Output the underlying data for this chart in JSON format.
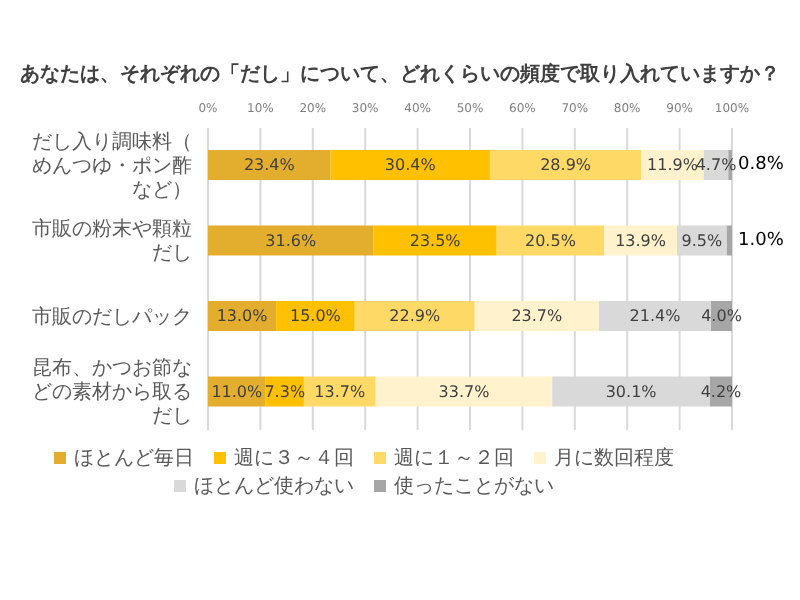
{
  "chart_data": {
    "type": "bar",
    "orientation": "horizontal",
    "stacked": true,
    "title": "あなたは、それぞれの「だし」について、どれくらいの頻度で取り入れていますか？",
    "categories": [
      "だし入り調味料（めんつゆ・ポン酢など）",
      "市販の粉末や顆粒だし",
      "市販のだしパック",
      "昆布、かつお節などの素材から取るだし"
    ],
    "series": [
      {
        "name": "ほとんど毎日",
        "color": "#e3ae2e",
        "values": [
          23.4,
          31.6,
          13.0,
          11.0
        ],
        "value_labels": [
          "23.4%",
          "31.6%",
          "13.0%",
          "11.0%"
        ]
      },
      {
        "name": "週に３～４回",
        "color": "#ffc000",
        "values": [
          30.4,
          23.5,
          15.0,
          7.3
        ],
        "value_labels": [
          "30.4%",
          "23.5%",
          "15.0%",
          "7.3%"
        ]
      },
      {
        "name": "週に１～２回",
        "color": "#ffd966",
        "values": [
          28.9,
          20.5,
          22.9,
          13.7
        ],
        "value_labels": [
          "28.9%",
          "20.5%",
          "22.9%",
          "13.7%"
        ]
      },
      {
        "name": "月に数回程度",
        "color": "#fff2cc",
        "values": [
          11.9,
          13.9,
          23.7,
          33.7
        ],
        "value_labels": [
          "11.9%",
          "13.9%",
          "23.7%",
          "33.7%"
        ]
      },
      {
        "name": "ほとんど使わない",
        "color": "#d9d9d9",
        "values": [
          4.7,
          9.5,
          21.4,
          30.1
        ],
        "value_labels": [
          "4.7%",
          "9.5%",
          "21.4%",
          "30.1%"
        ]
      },
      {
        "name": "使ったことがない",
        "color": "#a6a6a6",
        "values": [
          0.8,
          1.0,
          4.0,
          4.2
        ],
        "value_labels": [
          "0.8%",
          "1.0%",
          "4.0%",
          "4.2%"
        ]
      }
    ],
    "xlim": [
      0,
      100
    ],
    "xticks": [
      {
        "value": 0,
        "label": "0%"
      },
      {
        "value": 10,
        "label": "10%"
      },
      {
        "value": 20,
        "label": "20%"
      },
      {
        "value": 30,
        "label": "30%"
      },
      {
        "value": 40,
        "label": "40%"
      },
      {
        "value": 50,
        "label": "50%"
      },
      {
        "value": 60,
        "label": "60%"
      },
      {
        "value": 70,
        "label": "70%"
      },
      {
        "value": 80,
        "label": "80%"
      },
      {
        "value": 90,
        "label": "90%"
      },
      {
        "value": 100,
        "label": "100%"
      }
    ],
    "grid": "x",
    "legend": "bottom"
  }
}
